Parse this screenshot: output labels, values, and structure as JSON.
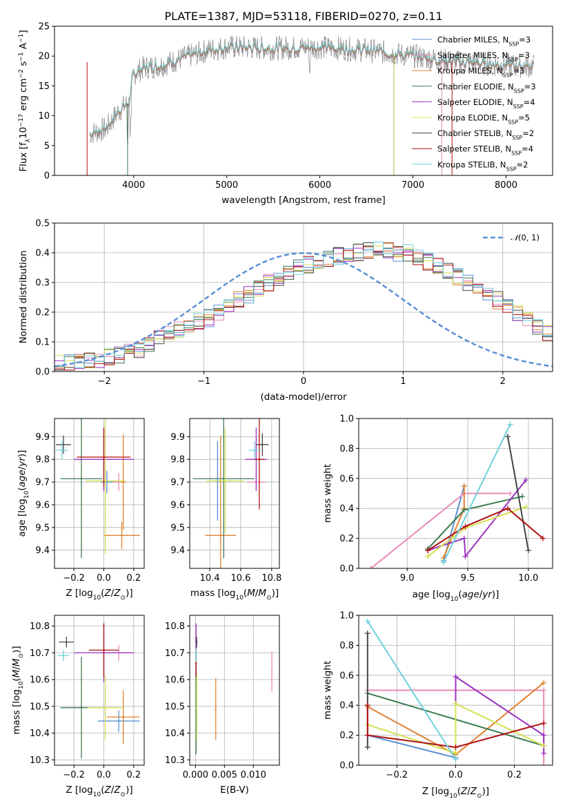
{
  "title": "PLATE=1387, MJD=53118, FIBERID=0270, z=0.11",
  "colors": {
    "Chabrier MILES": "#5b8fd6",
    "Salpeter MILES": "#e88ab8",
    "Kroupa MILES": "#e08030",
    "Chabrier ELODIE": "#3a7a50",
    "Salpeter ELODIE": "#9b30c0",
    "Kroupa ELODIE": "#d4e050",
    "Chabrier STELIB": "#444444",
    "Salpeter STELIB": "#b01010",
    "Kroupa STELIB": "#6ed0dc",
    "normal": "#5b8fd6"
  },
  "chart_data": [
    {
      "type": "line",
      "name": "spectrum",
      "xlabel": "wavelength [Angstrom, rest frame]",
      "ylabel": "Flux [f_λ 10^-17 erg cm^-2 s^-1 A^-1]",
      "xlim": [
        3150,
        8500
      ],
      "ylim": [
        0,
        25
      ],
      "xticks": [
        4000,
        5000,
        6000,
        7000,
        8000
      ],
      "yticks": [
        0,
        5,
        10,
        15,
        20,
        25
      ],
      "legend_position": "right",
      "legend": [
        "Chabrier MILES, N_SSP=3",
        "Salpeter MILES, N_SSP=3",
        "Kroupa MILES, N_SSP=3",
        "Chabrier ELODIE, N_SSP=3",
        "Salpeter ELODIE, N_SSP=4",
        "Kroupa ELODIE, N_SSP=5",
        "Chabrier STELIB, N_SSP=2",
        "Salpeter STELIB, N_SSP=4",
        "Kroupa STELIB, N_SSP=2"
      ],
      "continuum": {
        "x": [
          3530,
          3700,
          3850,
          3950,
          4000,
          4100,
          4300,
          4500,
          4800,
          5000,
          5500,
          6000,
          6500,
          7000,
          7300,
          7500,
          8000,
          8300
        ],
        "y": [
          7.0,
          7.8,
          11.0,
          12.2,
          17.0,
          18.0,
          18.5,
          19.5,
          21.0,
          21.5,
          21.3,
          21.5,
          21.0,
          20.0,
          19.3,
          19.0,
          18.5,
          18.3
        ]
      }
    },
    {
      "type": "histogram",
      "name": "residuals",
      "xlabel": "(data-model)/error",
      "ylabel": "Normed distribution",
      "xlim": [
        -2.5,
        2.5
      ],
      "ylim": [
        0,
        0.5
      ],
      "xticks": [
        -2,
        -1,
        0,
        1,
        2
      ],
      "yticks": [
        0.0,
        0.1,
        0.2,
        0.3,
        0.4,
        0.5
      ],
      "legend": [
        "N(0,1)"
      ],
      "bin_width": 0.1,
      "bin_start": -2.5,
      "envelope": [
        0.03,
        0.03,
        0.032,
        0.035,
        0.04,
        0.045,
        0.055,
        0.065,
        0.075,
        0.09,
        0.11,
        0.125,
        0.14,
        0.16,
        0.17,
        0.18,
        0.2,
        0.22,
        0.24,
        0.26,
        0.28,
        0.3,
        0.31,
        0.33,
        0.35,
        0.36,
        0.37,
        0.38,
        0.39,
        0.4,
        0.4,
        0.41,
        0.41,
        0.41,
        0.4,
        0.4,
        0.39,
        0.37,
        0.36,
        0.34,
        0.32,
        0.3,
        0.28,
        0.26,
        0.24,
        0.22,
        0.2,
        0.17,
        0.15,
        0.13,
        0.11,
        0.095,
        0.08,
        0.07,
        0.06,
        0.055,
        0.05,
        0.045,
        0.04,
        0.038,
        0.035,
        0.033,
        0.03,
        0.03,
        0.03,
        0.03,
        0.03,
        0.03,
        0.03,
        0.03,
        0.03,
        0.03,
        0.03,
        0.03,
        0.03,
        0.03
      ]
    },
    {
      "type": "errorbar",
      "name": "age-vs-Z",
      "xlabel": "Z [log10(Z/Z_sun)]",
      "ylabel": "age [log10(age/yr)]",
      "xlim": [
        -0.33,
        0.27
      ],
      "ylim": [
        9.32,
        9.98
      ],
      "xticks": [
        -0.2,
        0.0,
        0.2
      ],
      "yticks": [
        9.4,
        9.5,
        9.6,
        9.7,
        9.8,
        9.9
      ],
      "points": [
        {
          "s": "Chabrier MILES",
          "x": 0.02,
          "y": 9.7,
          "ex": 0.04,
          "ey": 0.05
        },
        {
          "s": "Salpeter MILES",
          "x": 0.1,
          "y": 9.7,
          "ex": 0.04,
          "ey": 0.04
        },
        {
          "s": "Kroupa MILES",
          "x": 0.12,
          "y": 9.465,
          "ex": 0.12,
          "ey": 0.06
        },
        {
          "s": "Kroupa MILES",
          "x": 0.13,
          "y": 9.7,
          "ex": 0.02,
          "ey": 0.21
        },
        {
          "s": "Chabrier ELODIE",
          "x": -0.15,
          "y": 9.715,
          "ex": 0.14,
          "ey": 0.35
        },
        {
          "s": "Salpeter ELODIE",
          "x": 0.0,
          "y": 9.8,
          "ex": 0.2,
          "ey": 0.14
        },
        {
          "s": "Kroupa ELODIE",
          "x": 0.01,
          "y": 9.705,
          "ex": 0.13,
          "ey": 0.32
        },
        {
          "s": "Chabrier STELIB",
          "x": -0.27,
          "y": 9.865,
          "ex": 0.05,
          "ey": 0.04
        },
        {
          "s": "Salpeter STELIB",
          "x": 0.0,
          "y": 9.81,
          "ex": 0.18,
          "ey": 0.13
        },
        {
          "s": "Kroupa STELIB",
          "x": -0.28,
          "y": 9.84,
          "ex": 0.04,
          "ey": 0.04
        }
      ]
    },
    {
      "type": "errorbar",
      "name": "age-vs-mass",
      "xlabel": "mass [log10(M/M_sun)]",
      "ylabel": "",
      "xlim": [
        10.27,
        10.85
      ],
      "ylim": [
        9.32,
        9.98
      ],
      "xticks": [
        10.4,
        10.6,
        10.8
      ],
      "yticks": [
        9.4,
        9.5,
        9.6,
        9.7,
        9.8,
        9.9
      ],
      "points": [
        {
          "s": "Chabrier MILES",
          "x": 10.45,
          "y": 9.705,
          "ex": 0.02,
          "ey": 0.175
        },
        {
          "s": "Salpeter MILES",
          "x": 10.7,
          "y": 9.7,
          "ex": 0.06,
          "ey": 0.04
        },
        {
          "s": "Kroupa MILES",
          "x": 10.47,
          "y": 9.465,
          "ex": 0.1,
          "ey": 0.44
        },
        {
          "s": "Chabrier ELODIE",
          "x": 10.49,
          "y": 9.715,
          "ex": 0.2,
          "ey": 0.35
        },
        {
          "s": "Salpeter ELODIE",
          "x": 10.7,
          "y": 9.8,
          "ex": 0.07,
          "ey": 0.14
        },
        {
          "s": "Kroupa ELODIE",
          "x": 10.5,
          "y": 9.705,
          "ex": 0.12,
          "ey": 0.23
        },
        {
          "s": "Chabrier STELIB",
          "x": 10.74,
          "y": 9.865,
          "ex": 0.04,
          "ey": 0.05
        },
        {
          "s": "Salpeter STELIB",
          "x": 10.72,
          "y": 9.8,
          "ex": 0.03,
          "ey": 0.22
        },
        {
          "s": "Kroupa STELIB",
          "x": 10.69,
          "y": 9.84,
          "ex": 0.04,
          "ey": 0.04
        }
      ]
    },
    {
      "type": "line",
      "name": "massweight-vs-age",
      "xlabel": "age [log10(age/yr)]",
      "ylabel": "mass weight",
      "xlim": [
        8.6,
        10.2
      ],
      "ylim": [
        0.0,
        1.0
      ],
      "xticks": [
        9.0,
        9.5,
        10.0
      ],
      "yticks": [
        0.0,
        0.2,
        0.4,
        0.6,
        0.8,
        1.0
      ],
      "series": [
        {
          "s": "Chabrier MILES",
          "x": [
            9.3,
            9.47
          ],
          "y": [
            0.05,
            0.55
          ]
        },
        {
          "s": "Salpeter MILES",
          "x": [
            8.7,
            9.47,
            9.85
          ],
          "y": [
            0.0,
            0.5,
            0.5
          ]
        },
        {
          "s": "Kroupa MILES",
          "x": [
            9.3,
            9.47,
            9.47
          ],
          "y": [
            0.07,
            0.4,
            0.55
          ]
        },
        {
          "s": "Chabrier ELODIE",
          "x": [
            9.17,
            9.47,
            9.95
          ],
          "y": [
            0.13,
            0.39,
            0.48
          ]
        },
        {
          "s": "Salpeter ELODIE",
          "x": [
            9.17,
            9.47,
            9.48,
            9.98
          ],
          "y": [
            0.12,
            0.2,
            0.08,
            0.59
          ]
        },
        {
          "s": "Kroupa ELODIE",
          "x": [
            9.17,
            9.48,
            9.98
          ],
          "y": [
            0.08,
            0.27,
            0.41
          ]
        },
        {
          "s": "Chabrier STELIB",
          "x": [
            9.83,
            10.0
          ],
          "y": [
            0.88,
            0.12
          ]
        },
        {
          "s": "Salpeter STELIB",
          "x": [
            9.17,
            9.48,
            9.83,
            10.12
          ],
          "y": [
            0.12,
            0.28,
            0.4,
            0.2
          ]
        },
        {
          "s": "Kroupa STELIB",
          "x": [
            9.3,
            9.85
          ],
          "y": [
            0.04,
            0.96
          ]
        }
      ]
    },
    {
      "type": "errorbar",
      "name": "mass-vs-Z",
      "xlabel": "Z [log10(Z/Z_sun)]",
      "ylabel": "mass [log10(M/M_sun)]",
      "xlim": [
        -0.33,
        0.27
      ],
      "ylim": [
        10.28,
        10.84
      ],
      "xticks": [
        -0.2,
        0.0,
        0.2
      ],
      "yticks": [
        10.3,
        10.4,
        10.5,
        10.6,
        10.7,
        10.8
      ],
      "points": [
        {
          "s": "Chabrier MILES",
          "x": 0.1,
          "y": 10.445,
          "ex": 0.14,
          "ey": 0.04
        },
        {
          "s": "Salpeter MILES",
          "x": 0.1,
          "y": 10.7,
          "ex": 0.1,
          "ey": 0.03
        },
        {
          "s": "Kroupa MILES",
          "x": 0.13,
          "y": 10.46,
          "ex": 0.11,
          "ey": 0.1
        },
        {
          "s": "Chabrier ELODIE",
          "x": -0.15,
          "y": 10.495,
          "ex": 0.14,
          "ey": 0.19
        },
        {
          "s": "Salpeter ELODIE",
          "x": 0.0,
          "y": 10.7,
          "ex": 0.2,
          "ey": 0.11
        },
        {
          "s": "Kroupa ELODIE",
          "x": 0.01,
          "y": 10.495,
          "ex": 0.12,
          "ey": 0.12
        },
        {
          "s": "Chabrier STELIB",
          "x": -0.25,
          "y": 10.74,
          "ex": 0.05,
          "ey": 0.02
        },
        {
          "s": "Salpeter STELIB",
          "x": 0.0,
          "y": 10.71,
          "ex": 0.1,
          "ey": 0.1
        },
        {
          "s": "Kroupa STELIB",
          "x": -0.27,
          "y": 10.69,
          "ex": 0.04,
          "ey": 0.02
        }
      ]
    },
    {
      "type": "errorbar",
      "name": "mass-vs-EBV",
      "xlabel": "E(B-V)",
      "ylabel": "",
      "xlim": [
        -0.001,
        0.0145
      ],
      "ylim": [
        10.28,
        10.84
      ],
      "xticks": [
        0.0,
        0.005,
        0.01
      ],
      "xtick_labels": [
        "0.000",
        "0.005",
        "0.010"
      ],
      "yticks": [
        10.3,
        10.4,
        10.5,
        10.6,
        10.7,
        10.8
      ],
      "points": [
        {
          "s": "Chabrier MILES",
          "x": 0.0002,
          "y": 10.445,
          "ex": 0,
          "ey": 0.04
        },
        {
          "s": "Salpeter MILES",
          "x": 0.0132,
          "y": 10.63,
          "ex": 0,
          "ey": 0.075
        },
        {
          "s": "Kroupa MILES",
          "x": 0.0035,
          "y": 10.49,
          "ex": 0,
          "ey": 0.115
        },
        {
          "s": "Chabrier ELODIE",
          "x": 0.0001,
          "y": 10.5,
          "ex": 0,
          "ey": 0.18
        },
        {
          "s": "Salpeter ELODIE",
          "x": 0.0001,
          "y": 10.745,
          "ex": 0,
          "ey": 0.065
        },
        {
          "s": "Kroupa ELODIE",
          "x": 0.0002,
          "y": 10.495,
          "ex": 0,
          "ey": 0.12
        },
        {
          "s": "Chabrier STELIB",
          "x": 0.0002,
          "y": 10.74,
          "ex": 0,
          "ey": 0.02
        },
        {
          "s": "Salpeter STELIB",
          "x": 0.0001,
          "y": 10.66,
          "ex": 0,
          "ey": 0.05
        },
        {
          "s": "Kroupa STELIB",
          "x": 0.0001,
          "y": 10.69,
          "ex": 0,
          "ey": 0.025
        }
      ]
    },
    {
      "type": "line",
      "name": "massweight-vs-Z",
      "xlabel": "Z [log10(Z/Z_sun)]",
      "ylabel": "mass weight",
      "xlim": [
        -0.33,
        0.33
      ],
      "ylim": [
        0.0,
        1.0
      ],
      "xticks": [
        -0.2,
        0.0,
        0.2
      ],
      "yticks": [
        0.0,
        0.2,
        0.4,
        0.6,
        0.8,
        1.0
      ],
      "series": [
        {
          "s": "Chabrier MILES",
          "x": [
            -0.3,
            0.0
          ],
          "y": [
            0.2,
            0.05
          ]
        },
        {
          "s": "Salpeter MILES",
          "x": [
            -0.3,
            0.3,
            0.3
          ],
          "y": [
            0.5,
            0.5,
            0.0
          ]
        },
        {
          "s": "Kroupa MILES",
          "x": [
            -0.3,
            0.0,
            0.3
          ],
          "y": [
            0.39,
            0.07,
            0.55
          ]
        },
        {
          "s": "Chabrier ELODIE",
          "x": [
            -0.3,
            0.3
          ],
          "y": [
            0.48,
            0.13
          ]
        },
        {
          "s": "Salpeter ELODIE",
          "x": [
            0.0,
            0.0,
            0.3,
            0.3
          ],
          "y": [
            0.12,
            0.59,
            0.2,
            0.08
          ]
        },
        {
          "s": "Kroupa ELODIE",
          "x": [
            -0.3,
            0.0,
            0.0,
            0.3
          ],
          "y": [
            0.27,
            0.08,
            0.41,
            0.13
          ]
        },
        {
          "s": "Chabrier STELIB",
          "x": [
            -0.3,
            -0.3
          ],
          "y": [
            0.88,
            0.12
          ]
        },
        {
          "s": "Salpeter STELIB",
          "x": [
            -0.3,
            -0.3,
            0.0,
            0.3
          ],
          "y": [
            0.4,
            0.2,
            0.12,
            0.28
          ]
        },
        {
          "s": "Kroupa STELIB",
          "x": [
            -0.3,
            0.0
          ],
          "y": [
            0.96,
            0.04
          ]
        }
      ]
    }
  ]
}
